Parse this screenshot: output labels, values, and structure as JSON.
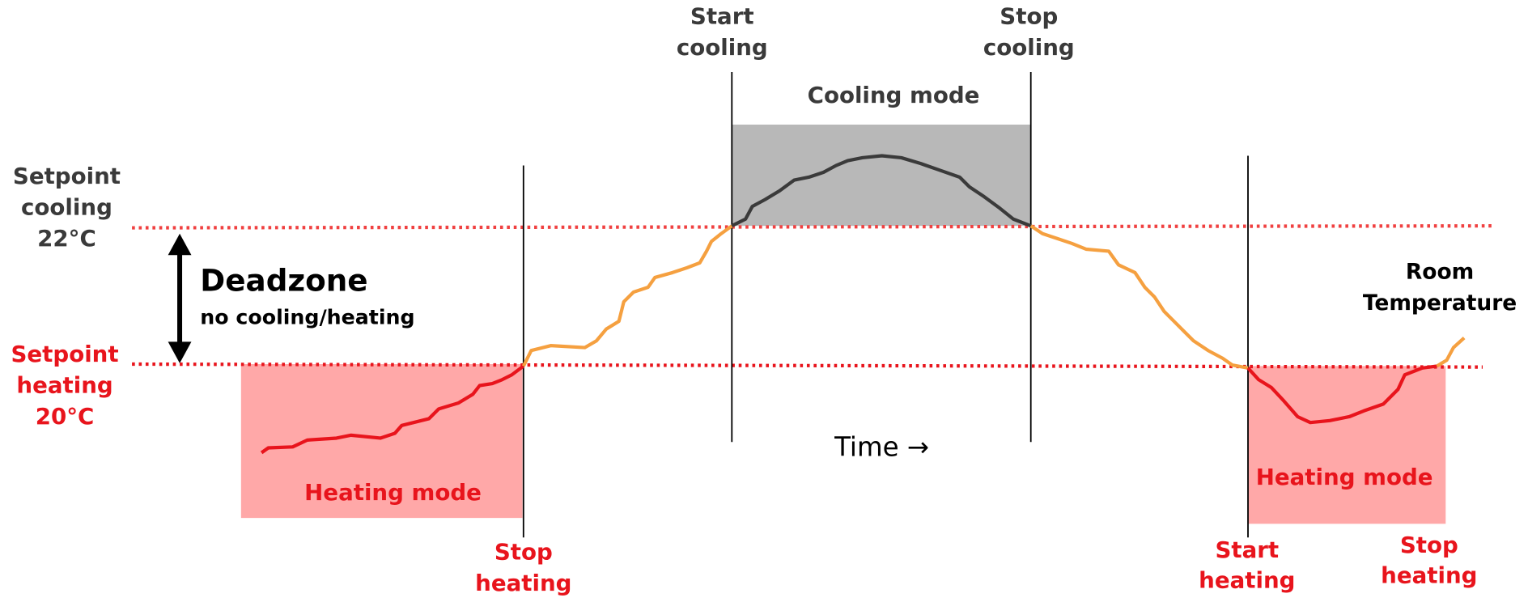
{
  "labels": {
    "start_cooling": [
      "Start",
      "cooling"
    ],
    "stop_cooling": [
      "Stop",
      "cooling"
    ],
    "cooling_mode": "Cooling mode",
    "setpoint_cooling": [
      "Setpoint",
      "cooling",
      "22°C"
    ],
    "deadzone": "Deadzone",
    "deadzone_note": "no cooling/heating",
    "setpoint_heating": [
      "Setpoint",
      "heating",
      "20°C"
    ],
    "heating_mode_left": "Heating mode",
    "heating_mode_right": "Heating mode",
    "time": "Time →",
    "stop_heating_left": [
      "Stop",
      "heating"
    ],
    "start_heating": [
      "Start",
      "heating"
    ],
    "stop_heating_right": [
      "Stop",
      "heating"
    ],
    "room_temperature": [
      "Room",
      "Temperature"
    ]
  }
}
